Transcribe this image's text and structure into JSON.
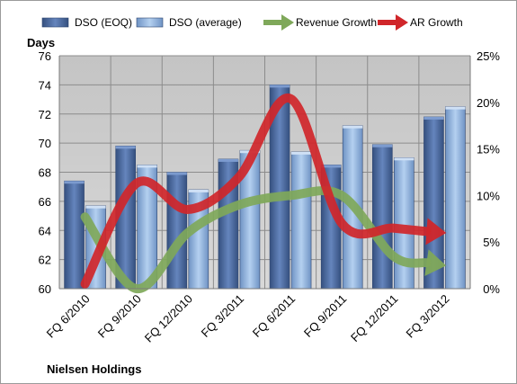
{
  "chart_data": {
    "type": "bar",
    "title": "",
    "footer_title": "Nielsen Holdings",
    "ylabel_left": "Days",
    "ylabel_right": "",
    "categories": [
      "FQ 6/2010",
      "FQ 9/2010",
      "FQ 12/2010",
      "FQ 3/2011",
      "FQ 6/2011",
      "FQ 9/2011",
      "FQ 12/2011",
      "FQ 3/2012"
    ],
    "ylim_left": [
      60,
      76
    ],
    "ylim_right": [
      0,
      25
    ],
    "yticks_left": [
      "60",
      "62",
      "64",
      "66",
      "68",
      "70",
      "72",
      "74",
      "76"
    ],
    "yticks_right": [
      "0%",
      "5%",
      "10%",
      "15%",
      "20%",
      "25%"
    ],
    "grid": true,
    "legend_position": "top",
    "series": [
      {
        "name": "DSO (EOQ)",
        "kind": "bar",
        "axis": "left",
        "color": "#4f6fa3",
        "values": [
          67.4,
          69.8,
          68.0,
          68.9,
          74.0,
          68.5,
          69.9,
          71.8
        ]
      },
      {
        "name": "DSO (average)",
        "kind": "bar",
        "axis": "left",
        "color": "#97b9e0",
        "values": [
          65.7,
          68.5,
          66.8,
          69.5,
          69.4,
          71.2,
          69.0,
          72.5
        ]
      },
      {
        "name": "Revenue Growth",
        "kind": "line",
        "axis": "right",
        "color": "#7fa85a",
        "values": [
          7.7,
          0.0,
          6.0,
          9.0,
          10.0,
          10.0,
          3.5,
          2.5
        ]
      },
      {
        "name": "AR Growth",
        "kind": "line",
        "axis": "right",
        "color": "#d0262a",
        "values": [
          0.5,
          11.3,
          8.5,
          12.0,
          20.4,
          7.0,
          6.5,
          6.0
        ]
      }
    ]
  }
}
